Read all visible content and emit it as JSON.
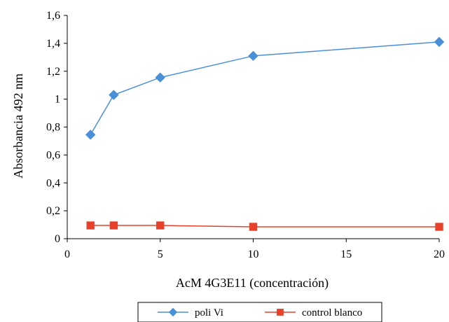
{
  "chart_data": {
    "type": "line",
    "title": "",
    "xlabel": "AcM 4G3E11  (concentración)",
    "ylabel": "Absorbancia 492  nm",
    "xlim": [
      0,
      20
    ],
    "ylim": [
      0,
      1.6
    ],
    "x_ticks": [
      "0",
      "5",
      "10",
      "15",
      "20"
    ],
    "y_ticks": [
      "0",
      "0,2",
      "0,4",
      "0,6",
      "0,8",
      "1",
      "1,2",
      "1,4",
      "1,6"
    ],
    "grid": false,
    "legend_position": "bottom",
    "series": [
      {
        "name": "poli Vi",
        "color": "#4a90d9",
        "marker": "diamond",
        "x": [
          1.25,
          2.5,
          5,
          10,
          20
        ],
        "y": [
          0.745,
          1.03,
          1.155,
          1.31,
          1.41
        ]
      },
      {
        "name": "control blanco",
        "color": "#e8412b",
        "marker": "square",
        "x": [
          1.25,
          2.5,
          5,
          10,
          20
        ],
        "y": [
          0.095,
          0.095,
          0.095,
          0.085,
          0.085
        ]
      }
    ]
  }
}
